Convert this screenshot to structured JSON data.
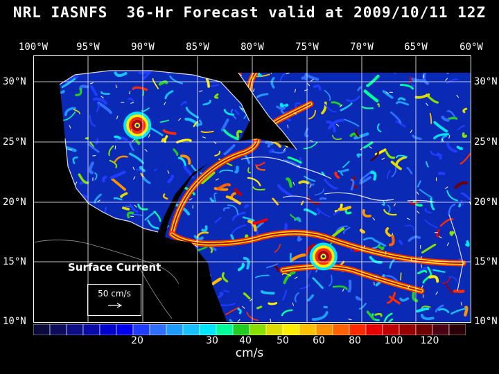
{
  "title": "NRL IASNFS  36-Hr Forecast valid at 2009/10/11 12Z",
  "lon_labels": [
    "100°W",
    "95°W",
    "90°W",
    "85°W",
    "80°W",
    "75°W",
    "70°W",
    "65°W",
    "60°W"
  ],
  "lat_labels": [
    "30°N",
    "25°N",
    "20°N",
    "15°N",
    "10°N"
  ],
  "field_label": "Surface Current",
  "reference_vector": {
    "label": "50 cm/s"
  },
  "colorbar": {
    "unit": "cm/s",
    "tick_labels": [
      "20",
      "30",
      "40",
      "50",
      "60",
      "80",
      "100",
      "120"
    ],
    "colors": [
      "#0a0a3c",
      "#0c0c5a",
      "#0d0d84",
      "#0a0aa8",
      "#0000cc",
      "#0000f0",
      "#1f3cff",
      "#2f6eff",
      "#1f9bff",
      "#18c0ff",
      "#00e6ff",
      "#00ff9a",
      "#22cc22",
      "#88e000",
      "#dddd00",
      "#ffee00",
      "#ffc000",
      "#ff9000",
      "#ff6000",
      "#ff2a00",
      "#e60000",
      "#c00000",
      "#960000",
      "#6e0000",
      "#4a0012",
      "#2a0006"
    ]
  },
  "map": {
    "lon_range": [
      -100,
      -60
    ],
    "lat_range": [
      10,
      31
    ],
    "eddy_centers": [
      {
        "lon": -90.5,
        "lat": 25.5
      },
      {
        "lon": -73.5,
        "lat": 15.2
      }
    ]
  }
}
